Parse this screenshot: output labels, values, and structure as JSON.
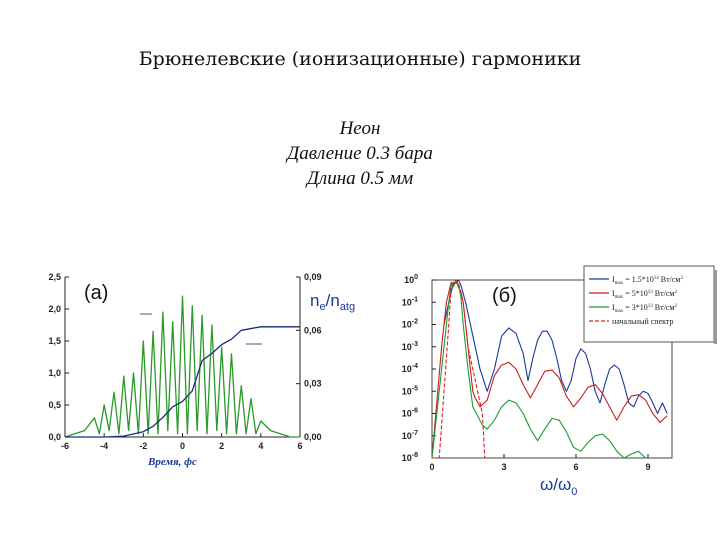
{
  "title": "Брюнелевские (ионизационные) гармоники",
  "subtitle": [
    "Неон",
    "Давление 0.3 бара",
    "Длина 0.5 мм"
  ],
  "chart_data": [
    {
      "type": "line",
      "panel_label": "(а)",
      "xlabel": "Время, фс",
      "right_label_base": "n",
      "right_label_sub1": "e",
      "right_label_mid": "/n",
      "right_label_sub2": "atg",
      "xlim": [
        -6,
        6
      ],
      "ylim_left": [
        0,
        2.5
      ],
      "ylim_right": [
        0,
        0.09
      ],
      "xticks": [
        "-6",
        "-4",
        "-2",
        "0",
        "2",
        "4",
        "6"
      ],
      "yticks_left": [
        "0,0",
        "0,5",
        "1,0",
        "1,5",
        "2,0",
        "2,5"
      ],
      "yticks_right": [
        "0,00",
        "0,03",
        "0,06",
        "0,09"
      ],
      "series": [
        {
          "color": "#2a9a2a",
          "x": [
            -6.0,
            -5.5,
            -5.0,
            -4.5,
            -4.25,
            -4.0,
            -3.75,
            -3.5,
            -3.25,
            -3.0,
            -2.75,
            -2.5,
            -2.25,
            -2.0,
            -1.75,
            -1.5,
            -1.25,
            -1.0,
            -0.75,
            -0.5,
            -0.25,
            0.0,
            0.25,
            0.5,
            0.75,
            1.0,
            1.25,
            1.5,
            1.75,
            2.0,
            2.25,
            2.5,
            2.75,
            3.0,
            3.25,
            3.5,
            3.75,
            4.0,
            4.5,
            5.0,
            5.5,
            6.0
          ],
          "y": [
            0.0,
            0.05,
            0.1,
            0.3,
            0.05,
            0.5,
            0.1,
            0.7,
            0.05,
            0.95,
            0.1,
            1.0,
            0.05,
            1.5,
            0.05,
            1.65,
            0.05,
            1.95,
            0.1,
            1.8,
            0.05,
            2.2,
            0.05,
            2.05,
            0.1,
            1.9,
            0.05,
            1.75,
            0.1,
            1.4,
            0.05,
            1.3,
            0.05,
            0.8,
            0.05,
            0.6,
            0.05,
            0.25,
            0.1,
            0.05,
            0.0,
            0.0
          ]
        },
        {
          "color": "#1a2a7a",
          "x": [
            -6.0,
            -4.0,
            -3.0,
            -2.0,
            -1.5,
            -1.0,
            -0.5,
            0.0,
            0.5,
            1.0,
            1.5,
            2.0,
            2.5,
            3.0,
            4.0,
            5.0,
            6.0
          ],
          "y": [
            0.0,
            0.0,
            0.0005,
            0.003,
            0.006,
            0.011,
            0.017,
            0.02,
            0.026,
            0.043,
            0.047,
            0.052,
            0.055,
            0.06,
            0.062,
            0.062,
            0.062
          ]
        }
      ]
    },
    {
      "type": "line",
      "panel_label": "(б)",
      "xlabel_base": "ω/ω",
      "xlabel_sub": "0",
      "scale_y": "log",
      "xlim": [
        0,
        10
      ],
      "ylim": [
        1e-08,
        1
      ],
      "xticks": [
        "0",
        "3",
        "6",
        "9"
      ],
      "yticks_base": [
        "10",
        "10",
        "10",
        "10",
        "10",
        "10",
        "10",
        "10",
        "10"
      ],
      "yticks_exp": [
        "0",
        "-1",
        "-2",
        "-3",
        "-4",
        "-5",
        "-6",
        "-7",
        "-8"
      ],
      "legend": [
        {
          "text_main": "I",
          "text_sub": "max",
          "text_val": " = 1.5*10",
          "text_exp": "14",
          "text_unit": " Вт/см",
          "text_unit_exp": "2",
          "color": "#1a3a9a",
          "dashed": false
        },
        {
          "text_main": "I",
          "text_sub": "max",
          "text_val": " = 5*10",
          "text_exp": "13",
          "text_unit": " Вт/см",
          "text_unit_exp": "2",
          "color": "#c81e1e",
          "dashed": false
        },
        {
          "text_main": "I",
          "text_sub": "max",
          "text_val": " = 3*10",
          "text_exp": "13",
          "text_unit": " Вт/см",
          "text_unit_exp": "2",
          "color": "#1f9a2f",
          "dashed": false
        },
        {
          "text_main": "начальный спектр",
          "text_sub": "",
          "text_val": "",
          "text_exp": "",
          "text_unit": "",
          "text_unit_exp": "",
          "color": "#e02020",
          "dashed": true
        }
      ],
      "series": [
        {
          "color": "#1a3a9a",
          "x": [
            0.5,
            0.7,
            0.9,
            1.0,
            1.1,
            1.2,
            1.4,
            1.6,
            1.8,
            2.0,
            2.3,
            2.6,
            2.9,
            3.2,
            3.5,
            3.8,
            4.0,
            4.2,
            4.4,
            4.6,
            4.8,
            5.0,
            5.2,
            5.4,
            5.6,
            5.8,
            6.0,
            6.2,
            6.4,
            6.6,
            6.8,
            7.0,
            7.2,
            7.4,
            7.6,
            7.8,
            8.0,
            8.2,
            8.4,
            8.6,
            8.8,
            9.0,
            9.2,
            9.4,
            9.6,
            9.8
          ],
          "y": [
            0.01,
            0.1,
            0.8,
            0.7,
            1,
            0.6,
            0.1,
            0.01,
            0.001,
            0.0001,
            1e-05,
            0.0001,
            0.003,
            0.007,
            0.004,
            0.0005,
            3e-05,
            0.0003,
            0.002,
            0.005,
            0.005,
            0.002,
            0.0003,
            3e-05,
            1e-05,
            3e-05,
            0.0003,
            0.0008,
            0.0005,
            0.0001,
            1e-05,
            3e-06,
            2e-05,
            0.0001,
            0.00015,
            0.0001,
            2e-05,
            3e-06,
            2e-06,
            6e-06,
            1e-05,
            8e-06,
            3e-06,
            1e-06,
            3e-06,
            1e-06
          ]
        },
        {
          "color": "#c81e1e",
          "x": [
            0.0,
            0.4,
            0.6,
            0.8,
            0.9,
            1.0,
            1.1,
            1.2,
            1.3,
            1.4,
            1.5,
            1.6,
            1.7,
            1.8,
            2.0,
            2.3,
            2.6,
            2.9,
            3.2,
            3.5,
            3.8,
            4.1,
            4.4,
            4.7,
            5.0,
            5.3,
            5.6,
            5.9,
            6.2,
            6.5,
            6.8,
            7.1,
            7.4,
            7.7,
            8.0,
            8.3,
            8.6,
            8.9,
            9.2,
            9.5,
            9.8
          ],
          "y": [
            1e-08,
            0.001,
            0.1,
            0.8,
            0.6,
            1,
            0.5,
            0.3,
            0.1,
            0.01,
            0.001,
            0.0001,
            1e-05,
            5e-06,
            2e-06,
            4e-06,
            5e-05,
            0.00015,
            0.0002,
            0.0001,
            2e-05,
            5e-06,
            2e-05,
            8e-05,
            9e-05,
            4e-05,
            6e-06,
            2e-06,
            5e-06,
            1.5e-05,
            2e-05,
            8e-06,
            2e-06,
            5e-07,
            2e-06,
            6e-06,
            7e-06,
            4e-06,
            1e-06,
            4e-07,
            8e-07
          ]
        },
        {
          "color": "#1f9a2f",
          "x": [
            0.0,
            0.5,
            0.7,
            0.8,
            0.9,
            1.0,
            1.1,
            1.2,
            1.3,
            1.4,
            1.5,
            1.7,
            1.9,
            2.1,
            2.3,
            2.6,
            2.9,
            3.2,
            3.5,
            3.8,
            4.1,
            4.4,
            4.7,
            5.0,
            5.3,
            5.6,
            5.9,
            6.2,
            6.5,
            6.8,
            7.1,
            7.4,
            7.7,
            8.0,
            8.3,
            8.6,
            8.9
          ],
          "y": [
            1e-08,
            0.001,
            0.1,
            0.7,
            0.5,
            1,
            0.6,
            0.2,
            0.01,
            0.001,
            0.0001,
            2e-06,
            8e-07,
            3e-07,
            2e-07,
            5e-07,
            2e-06,
            4e-06,
            3e-06,
            1e-06,
            2e-07,
            6e-08,
            2e-07,
            6e-07,
            5e-07,
            1.5e-07,
            3e-08,
            2e-08,
            5e-08,
            1e-07,
            1.2e-07,
            6e-08,
            2e-08,
            8e-09,
            1.5e-08,
            2e-08,
            1e-08
          ]
        },
        {
          "color": "#e02020",
          "dashed": true,
          "x": [
            0.0,
            0.3,
            0.5,
            0.7,
            0.8,
            0.9,
            1.0,
            1.1,
            1.2,
            1.3,
            1.4,
            1.5,
            1.7,
            1.9,
            2.1,
            2.2
          ],
          "y": [
            1e-08,
            1e-08,
            1e-05,
            0.01,
            0.5,
            0.8,
            1,
            0.7,
            0.3,
            0.1,
            0.01,
            0.001,
            0.0001,
            1e-05,
            1e-06,
            1e-08
          ]
        }
      ]
    }
  ]
}
